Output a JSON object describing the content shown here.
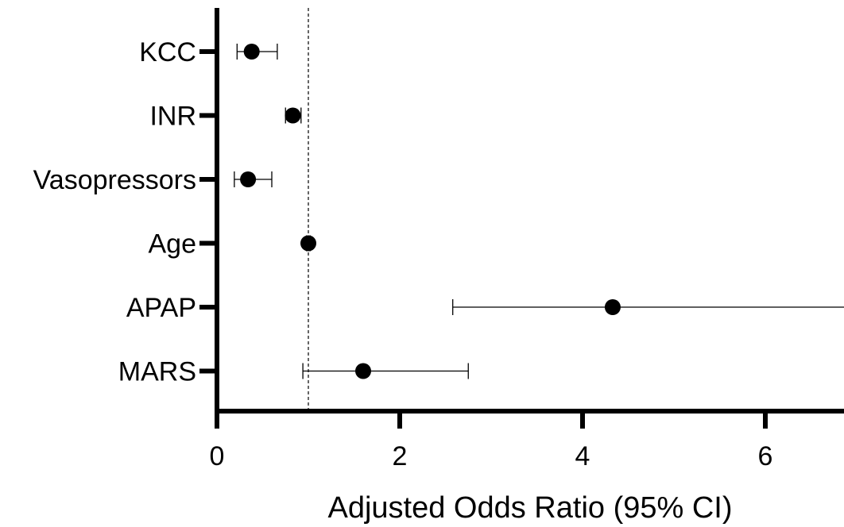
{
  "chart_data": {
    "type": "scatter",
    "subtype": "forest-plot",
    "title": "",
    "xlabel": "Adjusted Odds Ratio (95% CI)",
    "ylabel": "",
    "xlim": [
      0,
      7
    ],
    "x_ticks": [
      0,
      2,
      4,
      6
    ],
    "x_tick_labels": [
      "0",
      "2",
      "4",
      "6"
    ],
    "reference_line": 1,
    "grid": false,
    "legend": "none",
    "categories": [
      "KCC",
      "INR",
      "Vasopressors",
      "Age",
      "APAP",
      "MARS"
    ],
    "estimates": [
      0.38,
      0.83,
      0.34,
      1.0,
      4.33,
      1.6
    ],
    "ci_lower": [
      0.22,
      0.75,
      0.19,
      0.98,
      2.58,
      0.94
    ],
    "ci_upper": [
      0.66,
      0.92,
      0.6,
      1.02,
      7.2,
      2.75
    ],
    "colors": {
      "axis": "#000000",
      "marker": "#000000",
      "background": "#ffffff"
    }
  }
}
